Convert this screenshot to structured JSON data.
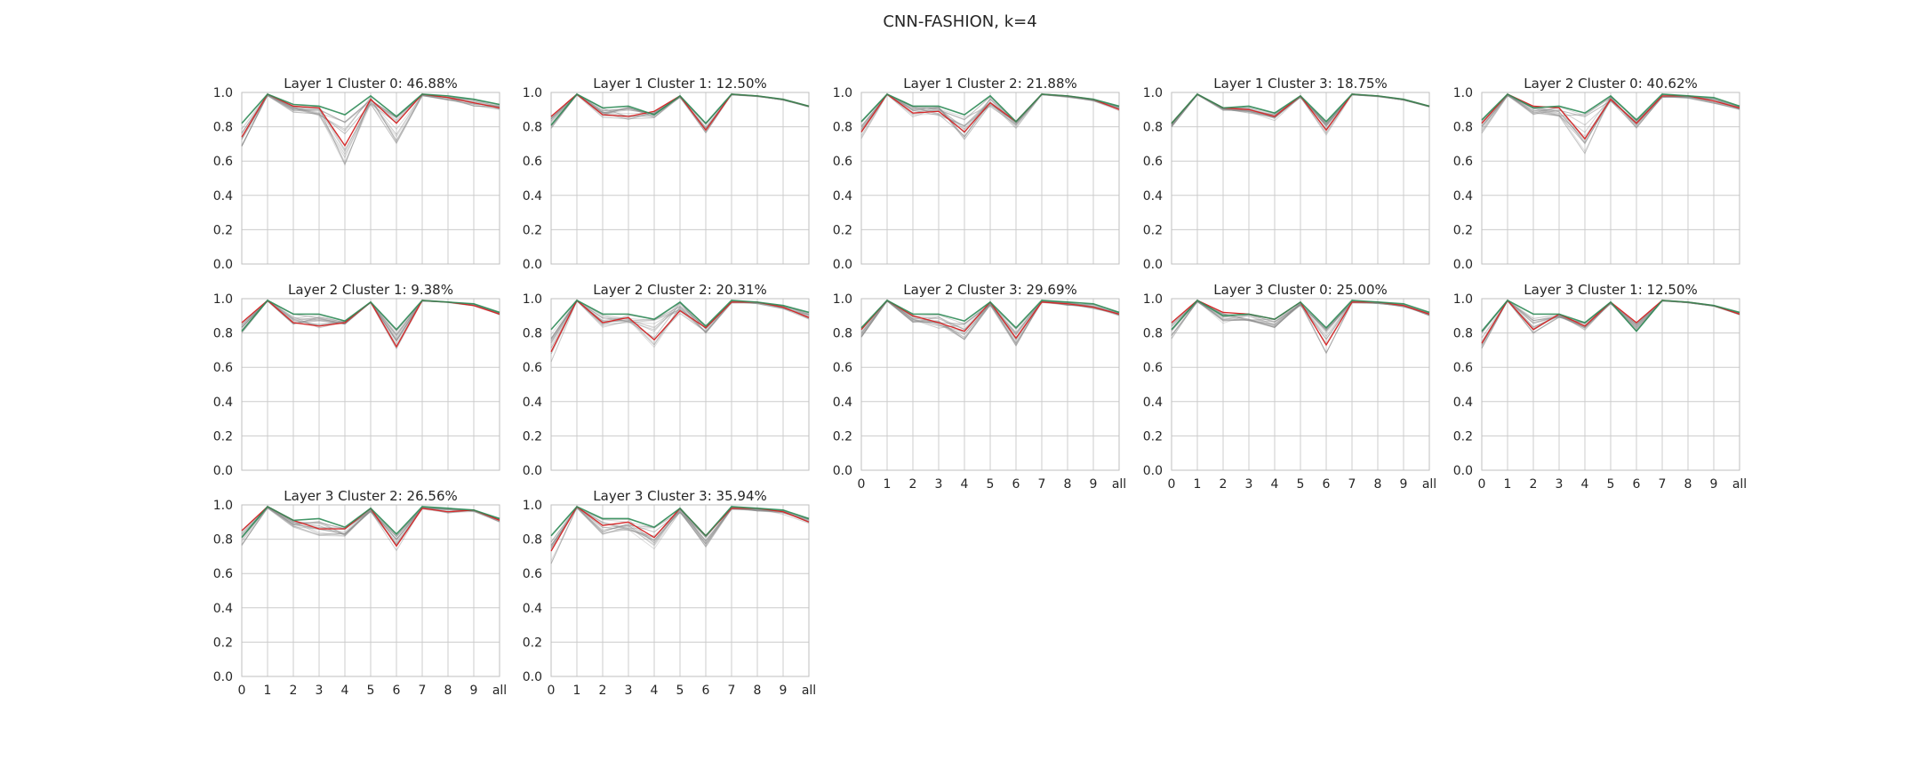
{
  "figure": {
    "title": "CNN-FASHION, k=4"
  },
  "chart_data": {
    "type": "line",
    "figure_title": "CNN-FASHION, k=4",
    "x_tick_labels": [
      "0",
      "1",
      "2",
      "3",
      "4",
      "5",
      "6",
      "7",
      "8",
      "9",
      "all"
    ],
    "y_tick_labels": [
      "0.0",
      "0.2",
      "0.4",
      "0.6",
      "0.8",
      "1.0"
    ],
    "ylim": [
      0,
      1
    ],
    "grid": true,
    "colors": {
      "worst": "#d62728",
      "best": "#2e8b57",
      "members": "#8c8c8c",
      "grid": "#cccccc",
      "frame": "#bfbfbf"
    },
    "panels": [
      {
        "title": "Layer 1 Cluster 0: 46.88%",
        "worst": [
          0.74,
          0.99,
          0.92,
          0.91,
          0.69,
          0.96,
          0.82,
          0.99,
          0.97,
          0.94,
          0.91
        ],
        "best": [
          0.82,
          0.99,
          0.93,
          0.92,
          0.87,
          0.98,
          0.86,
          0.99,
          0.98,
          0.96,
          0.93
        ],
        "spread": [
          0.16,
          0.02,
          0.08,
          0.09,
          0.26,
          0.06,
          0.26,
          0.02,
          0.03,
          0.04,
          0.02
        ]
      },
      {
        "title": "Layer 1 Cluster 1: 12.50%",
        "worst": [
          0.86,
          0.99,
          0.87,
          0.86,
          0.89,
          0.98,
          0.78,
          0.99,
          0.98,
          0.96,
          0.92
        ],
        "best": [
          0.81,
          0.99,
          0.91,
          0.92,
          0.87,
          0.98,
          0.82,
          0.99,
          0.98,
          0.96,
          0.92
        ],
        "spread": [
          0.05,
          0.01,
          0.03,
          0.05,
          0.05,
          0.02,
          0.05,
          0.01,
          0.01,
          0.01,
          0.01
        ]
      },
      {
        "title": "Layer 1 Cluster 2: 21.88%",
        "worst": [
          0.77,
          0.99,
          0.88,
          0.89,
          0.77,
          0.94,
          0.83,
          0.99,
          0.98,
          0.96,
          0.9
        ],
        "best": [
          0.83,
          0.99,
          0.92,
          0.92,
          0.87,
          0.98,
          0.83,
          0.99,
          0.98,
          0.96,
          0.92
        ],
        "spread": [
          0.08,
          0.01,
          0.05,
          0.05,
          0.1,
          0.05,
          0.08,
          0.01,
          0.02,
          0.02,
          0.02
        ]
      },
      {
        "title": "Layer 1 Cluster 3: 18.75%",
        "worst": [
          0.82,
          0.99,
          0.91,
          0.9,
          0.86,
          0.98,
          0.78,
          0.99,
          0.98,
          0.96,
          0.92
        ],
        "best": [
          0.82,
          0.99,
          0.91,
          0.92,
          0.88,
          0.98,
          0.83,
          0.99,
          0.98,
          0.96,
          0.92
        ],
        "spread": [
          0.05,
          0.01,
          0.03,
          0.04,
          0.05,
          0.02,
          0.06,
          0.01,
          0.01,
          0.01,
          0.01
        ]
      },
      {
        "title": "Layer 2 Cluster 0: 40.62%",
        "worst": [
          0.82,
          0.99,
          0.92,
          0.91,
          0.73,
          0.96,
          0.82,
          0.98,
          0.98,
          0.95,
          0.91
        ],
        "best": [
          0.84,
          0.99,
          0.91,
          0.92,
          0.88,
          0.98,
          0.84,
          0.99,
          0.98,
          0.97,
          0.92
        ],
        "spread": [
          0.12,
          0.02,
          0.08,
          0.1,
          0.18,
          0.05,
          0.1,
          0.02,
          0.03,
          0.03,
          0.02
        ]
      },
      {
        "title": "Layer 2 Cluster 1: 9.38%",
        "worst": [
          0.86,
          0.99,
          0.86,
          0.84,
          0.86,
          0.98,
          0.72,
          0.99,
          0.98,
          0.96,
          0.91
        ],
        "best": [
          0.81,
          0.99,
          0.91,
          0.91,
          0.87,
          0.98,
          0.82,
          0.99,
          0.98,
          0.97,
          0.92
        ],
        "spread": [
          0.03,
          0.01,
          0.02,
          0.02,
          0.02,
          0.01,
          0.03,
          0.01,
          0.01,
          0.01,
          0.01
        ]
      },
      {
        "title": "Layer 2 Cluster 2: 20.31%",
        "worst": [
          0.69,
          0.99,
          0.86,
          0.89,
          0.76,
          0.93,
          0.83,
          0.98,
          0.98,
          0.95,
          0.89
        ],
        "best": [
          0.82,
          0.99,
          0.91,
          0.91,
          0.88,
          0.98,
          0.84,
          0.99,
          0.98,
          0.96,
          0.92
        ],
        "spread": [
          0.12,
          0.01,
          0.06,
          0.06,
          0.1,
          0.04,
          0.08,
          0.01,
          0.02,
          0.02,
          0.02
        ]
      },
      {
        "title": "Layer 2 Cluster 3: 29.69%",
        "worst": [
          0.82,
          0.99,
          0.9,
          0.86,
          0.81,
          0.98,
          0.77,
          0.98,
          0.97,
          0.95,
          0.91
        ],
        "best": [
          0.83,
          0.99,
          0.91,
          0.91,
          0.87,
          0.98,
          0.83,
          0.99,
          0.98,
          0.97,
          0.92
        ],
        "spread": [
          0.1,
          0.01,
          0.08,
          0.08,
          0.12,
          0.04,
          0.1,
          0.01,
          0.02,
          0.02,
          0.02
        ]
      },
      {
        "title": "Layer 3 Cluster 0: 25.00%",
        "worst": [
          0.86,
          0.99,
          0.92,
          0.91,
          0.88,
          0.98,
          0.73,
          0.98,
          0.98,
          0.96,
          0.91
        ],
        "best": [
          0.82,
          0.99,
          0.9,
          0.91,
          0.88,
          0.98,
          0.83,
          0.99,
          0.98,
          0.97,
          0.92
        ],
        "spread": [
          0.12,
          0.02,
          0.1,
          0.1,
          0.1,
          0.04,
          0.1,
          0.01,
          0.02,
          0.02,
          0.02
        ]
      },
      {
        "title": "Layer 3 Cluster 1: 12.50%",
        "worst": [
          0.74,
          0.99,
          0.82,
          0.91,
          0.84,
          0.98,
          0.86,
          0.99,
          0.98,
          0.96,
          0.91
        ],
        "best": [
          0.81,
          0.99,
          0.91,
          0.91,
          0.86,
          0.98,
          0.81,
          0.99,
          0.98,
          0.96,
          0.92
        ],
        "spread": [
          0.07,
          0.01,
          0.05,
          0.04,
          0.05,
          0.02,
          0.06,
          0.01,
          0.01,
          0.01,
          0.01
        ]
      },
      {
        "title": "Layer 3 Cluster 2: 26.56%",
        "worst": [
          0.85,
          0.99,
          0.91,
          0.86,
          0.86,
          0.98,
          0.76,
          0.98,
          0.96,
          0.97,
          0.91
        ],
        "best": [
          0.81,
          0.99,
          0.91,
          0.92,
          0.87,
          0.98,
          0.83,
          0.99,
          0.98,
          0.97,
          0.92
        ],
        "spread": [
          0.1,
          0.02,
          0.08,
          0.08,
          0.12,
          0.04,
          0.1,
          0.01,
          0.02,
          0.02,
          0.02
        ]
      },
      {
        "title": "Layer 3 Cluster 3: 35.94%",
        "worst": [
          0.73,
          0.99,
          0.88,
          0.9,
          0.81,
          0.98,
          0.82,
          0.98,
          0.98,
          0.96,
          0.9
        ],
        "best": [
          0.82,
          0.99,
          0.92,
          0.92,
          0.87,
          0.98,
          0.82,
          0.99,
          0.98,
          0.97,
          0.92
        ],
        "spread": [
          0.16,
          0.02,
          0.12,
          0.1,
          0.14,
          0.05,
          0.14,
          0.02,
          0.03,
          0.03,
          0.02
        ]
      }
    ]
  }
}
